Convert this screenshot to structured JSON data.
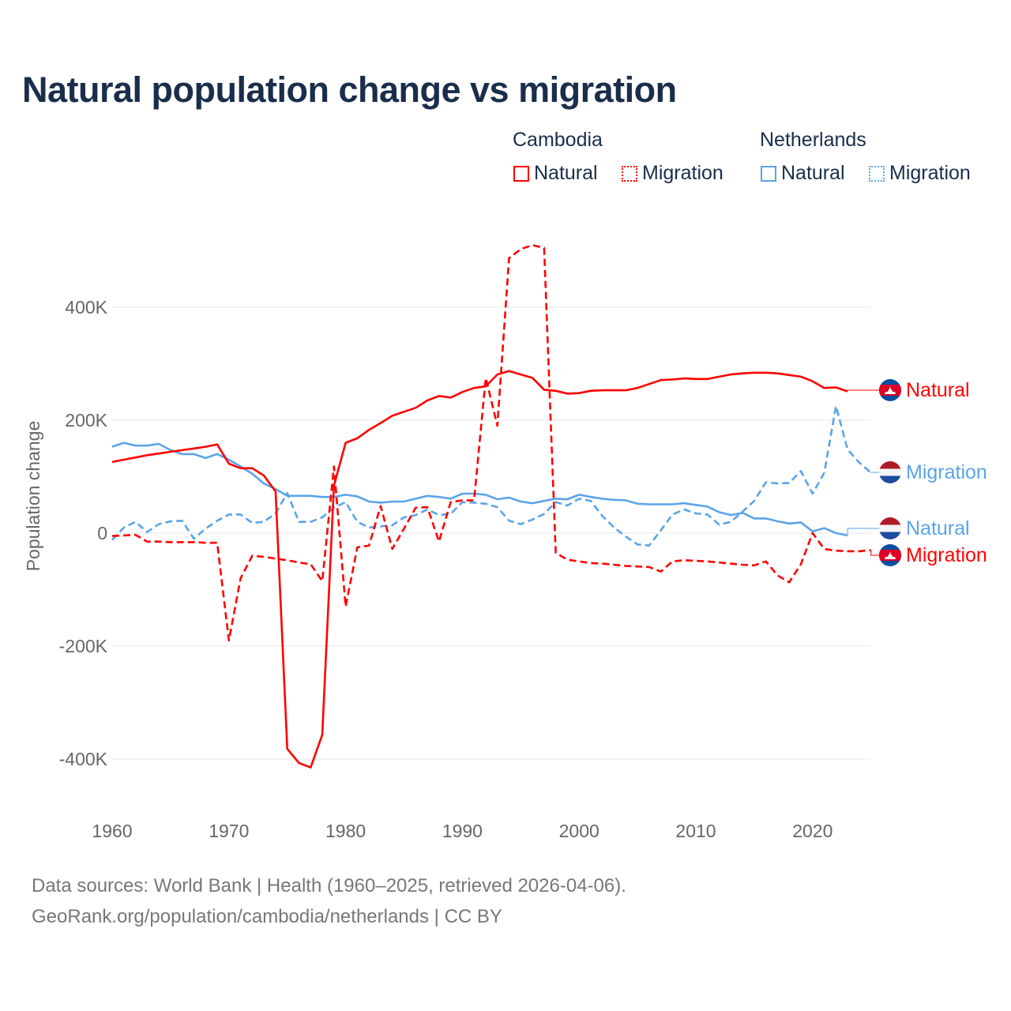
{
  "title": "Natural population change vs migration",
  "legend": {
    "groups": [
      {
        "name": "Cambodia",
        "items": [
          "Natural",
          "Migration"
        ],
        "color": "#ff0000"
      },
      {
        "name": "Netherlands",
        "items": [
          "Natural",
          "Migration"
        ],
        "color": "#5ba4e8"
      }
    ]
  },
  "source": {
    "line1": "Data sources: World Bank | Health (1960–2025, retrieved 2026-04-06).",
    "line2": "GeoRank.org/population/cambodia/netherlands | CC BY"
  },
  "chart_data": {
    "type": "line",
    "title": "Natural population change vs migration",
    "xlabel": "",
    "ylabel": "Population change",
    "xlim": [
      1960,
      2025
    ],
    "ylim": [
      -450,
      520
    ],
    "x_ticks": [
      1960,
      1970,
      1980,
      1990,
      2000,
      2010,
      2020
    ],
    "y_ticks": [
      {
        "v": 400,
        "label": "400K"
      },
      {
        "v": 200,
        "label": "200K"
      },
      {
        "v": 0,
        "label": "0"
      },
      {
        "v": -200,
        "label": "-200K"
      },
      {
        "v": -400,
        "label": "-400K"
      }
    ],
    "units": "thousands",
    "grid": true,
    "series": [
      {
        "name": "Cambodia Natural",
        "end_label": "Natural",
        "country": "cambodia",
        "color": "#ff0000",
        "dashed": false,
        "start": 1960,
        "values": [
          126,
          130,
          134,
          138,
          141,
          144,
          147,
          150,
          153,
          157,
          123,
          115,
          115,
          102,
          74,
          -382,
          -407,
          -415,
          -357,
          84,
          160,
          168,
          183,
          195,
          208,
          215,
          222,
          235,
          243,
          240,
          250,
          257,
          260,
          281,
          287,
          281,
          275,
          254,
          252,
          247,
          248,
          252,
          253,
          253,
          253,
          257,
          264,
          271,
          272,
          274,
          273,
          273,
          277,
          281,
          283,
          284,
          284,
          283,
          280,
          277,
          269,
          257,
          258,
          251
        ]
      },
      {
        "name": "Cambodia Migration",
        "end_label": "Migration",
        "country": "cambodia",
        "color": "#ff0000",
        "dashed": true,
        "start": 1960,
        "values": [
          -5,
          -4,
          -3,
          -15,
          -15,
          -16,
          -16,
          -16,
          -17,
          -17,
          -190,
          -80,
          -40,
          -42,
          -45,
          -48,
          -52,
          -55,
          -85,
          118,
          -130,
          -25,
          -22,
          48,
          -28,
          8,
          45,
          46,
          -15,
          55,
          58,
          58,
          275,
          190,
          487,
          503,
          510,
          505,
          -35,
          -47,
          -50,
          -53,
          -54,
          -56,
          -58,
          -59,
          -60,
          -68,
          -50,
          -48,
          -49,
          -50,
          -52,
          -54,
          -56,
          -57,
          -50,
          -75,
          -87,
          -55,
          0,
          -28,
          -31,
          -32,
          -32,
          -30
        ]
      },
      {
        "name": "Netherlands Natural",
        "end_label": "Natural",
        "country": "netherlands",
        "color": "#5ba4e8",
        "dashed": false,
        "start": 1960,
        "values": [
          153,
          160,
          155,
          155,
          158,
          147,
          140,
          140,
          133,
          140,
          130,
          118,
          105,
          88,
          78,
          66,
          66,
          66,
          64,
          64,
          68,
          65,
          56,
          54,
          56,
          56,
          61,
          66,
          64,
          61,
          70,
          70,
          68,
          60,
          63,
          56,
          53,
          57,
          61,
          60,
          68,
          64,
          61,
          59,
          58,
          52,
          51,
          51,
          51,
          53,
          50,
          47,
          37,
          32,
          36,
          26,
          26,
          21,
          17,
          19,
          3,
          9,
          0,
          -4
        ]
      },
      {
        "name": "Netherlands Migration",
        "end_label": "Migration",
        "country": "netherlands",
        "color": "#5ba4e8",
        "dashed": true,
        "start": 1960,
        "values": [
          -12,
          10,
          20,
          2,
          16,
          21,
          22,
          -10,
          8,
          22,
          33,
          33,
          18,
          20,
          35,
          71,
          20,
          20,
          28,
          45,
          55,
          20,
          10,
          12,
          14,
          28,
          32,
          42,
          32,
          34,
          55,
          54,
          52,
          46,
          22,
          16,
          24,
          34,
          55,
          49,
          61,
          57,
          30,
          10,
          -6,
          -20,
          -22,
          5,
          33,
          42,
          35,
          33,
          15,
          20,
          38,
          57,
          90,
          88,
          89,
          110,
          70,
          107,
          225,
          148,
          125,
          107
        ]
      }
    ]
  }
}
